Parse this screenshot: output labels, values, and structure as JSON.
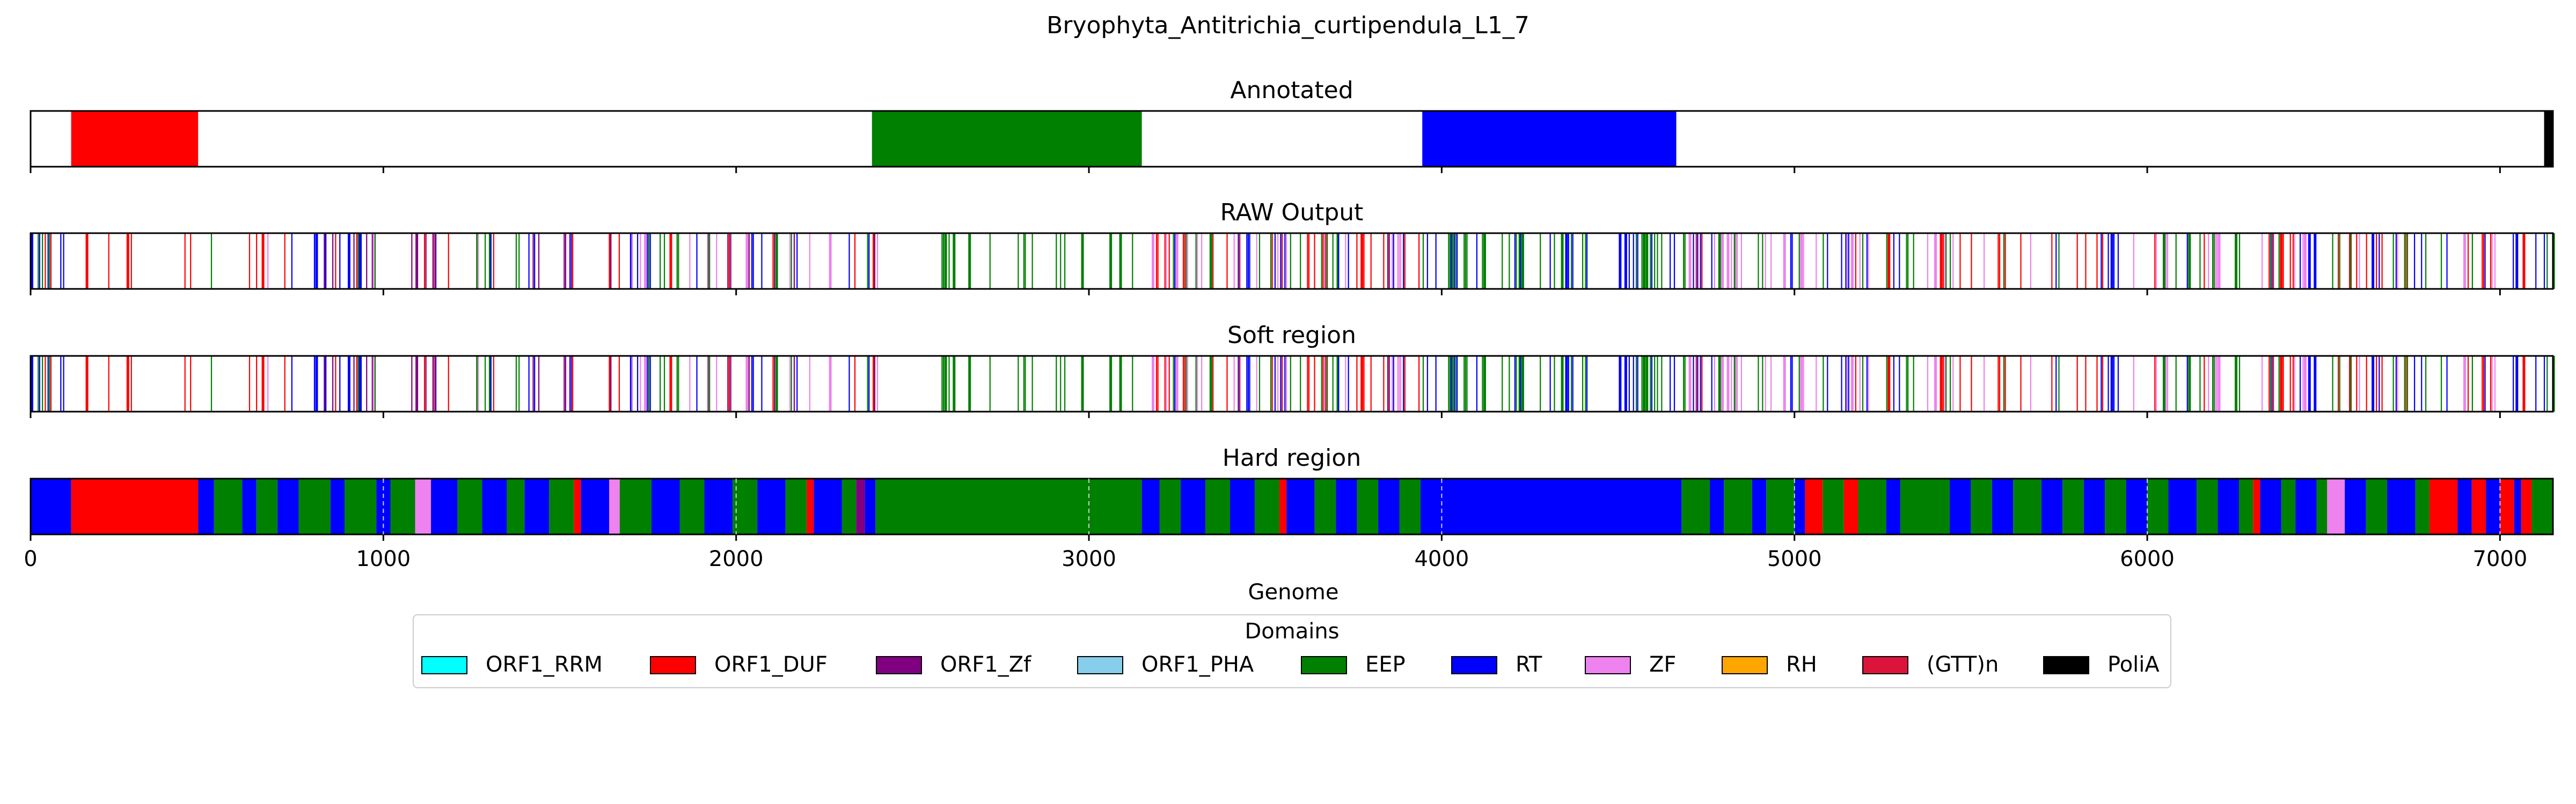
{
  "figure_title": "Bryophyta_Antitrichia_curtipendula_L1_7",
  "chart_data": {
    "type": "bar",
    "orientation": "horizontal-tracks",
    "xlabel": "Genome",
    "xlim": [
      0,
      7150
    ],
    "xticks": [
      0,
      1000,
      2000,
      3000,
      4000,
      5000,
      6000,
      7000
    ],
    "grid": false,
    "legend": {
      "title": "Domains",
      "placement": "bottom-center",
      "entries": [
        {
          "name": "ORF1_RRM",
          "color": "#00ffff"
        },
        {
          "name": "ORF1_DUF",
          "color": "#ff0000"
        },
        {
          "name": "ORF1_Zf",
          "color": "#800080"
        },
        {
          "name": "ORF1_PHA",
          "color": "#87ceeb"
        },
        {
          "name": "EEP",
          "color": "#008000"
        },
        {
          "name": "RT",
          "color": "#0000ff"
        },
        {
          "name": "ZF",
          "color": "#ee82ee"
        },
        {
          "name": "RH",
          "color": "#ffa500"
        },
        {
          "name": "(GTT)n",
          "color": "#dc143c"
        },
        {
          "name": "PoliA",
          "color": "#000000"
        }
      ]
    },
    "tracks": [
      {
        "title": "Annotated",
        "segments": [
          {
            "domain": "ORF1_DUF",
            "start": 115,
            "end": 475
          },
          {
            "domain": "EEP",
            "start": 2385,
            "end": 3150
          },
          {
            "domain": "RT",
            "start": 3945,
            "end": 4665
          },
          {
            "domain": "PoliA",
            "start": 7125,
            "end": 7150
          }
        ]
      },
      {
        "title": "RAW Output",
        "pattern_seed": 7,
        "sparse_gap": [
          2400,
          2550
        ],
        "zones": [
          {
            "start": 0,
            "end": 120,
            "domains": [
              "RT",
              "EEP",
              "ORF1_DUF"
            ],
            "density": 0.3
          },
          {
            "start": 120,
            "end": 475,
            "domains": [
              "ORF1_DUF"
            ],
            "density": 0.1
          },
          {
            "start": 475,
            "end": 2400,
            "domains": [
              "RT",
              "EEP",
              "ORF1_Zf",
              "ORF1_DUF",
              "ZF"
            ],
            "density": 0.24
          },
          {
            "start": 2550,
            "end": 3150,
            "domains": [
              "EEP"
            ],
            "density": 0.14
          },
          {
            "start": 3150,
            "end": 3950,
            "domains": [
              "RT",
              "EEP",
              "ORF1_DUF",
              "ZF"
            ],
            "density": 0.26
          },
          {
            "start": 3950,
            "end": 4680,
            "domains": [
              "RT",
              "EEP"
            ],
            "density": 0.25
          },
          {
            "start": 4680,
            "end": 7150,
            "domains": [
              "EEP",
              "RT",
              "ORF1_DUF",
              "ZF"
            ],
            "density": 0.22
          }
        ]
      },
      {
        "title": "Soft region",
        "pattern_seed": 7,
        "sparse_gap": [
          2400,
          2550
        ],
        "zones": [
          {
            "start": 0,
            "end": 120,
            "domains": [
              "RT",
              "EEP",
              "ORF1_DUF"
            ],
            "density": 0.3
          },
          {
            "start": 120,
            "end": 475,
            "domains": [
              "ORF1_DUF"
            ],
            "density": 0.1
          },
          {
            "start": 475,
            "end": 2400,
            "domains": [
              "RT",
              "EEP",
              "ORF1_Zf",
              "ORF1_DUF",
              "ZF"
            ],
            "density": 0.24
          },
          {
            "start": 2550,
            "end": 3150,
            "domains": [
              "EEP"
            ],
            "density": 0.14
          },
          {
            "start": 3150,
            "end": 3950,
            "domains": [
              "RT",
              "EEP",
              "ORF1_DUF",
              "ZF"
            ],
            "density": 0.26
          },
          {
            "start": 3950,
            "end": 4680,
            "domains": [
              "RT",
              "EEP"
            ],
            "density": 0.25
          },
          {
            "start": 4680,
            "end": 7150,
            "domains": [
              "EEP",
              "RT",
              "ORF1_DUF",
              "ZF"
            ],
            "density": 0.22
          }
        ]
      },
      {
        "title": "Hard region",
        "segments": [
          {
            "domain": "RT",
            "start": 0,
            "end": 115
          },
          {
            "domain": "ORF1_DUF",
            "start": 115,
            "end": 475
          },
          {
            "domain": "RT",
            "start": 475,
            "end": 520
          },
          {
            "domain": "EEP",
            "start": 520,
            "end": 600
          },
          {
            "domain": "RT",
            "start": 600,
            "end": 640
          },
          {
            "domain": "EEP",
            "start": 640,
            "end": 700
          },
          {
            "domain": "RT",
            "start": 700,
            "end": 760
          },
          {
            "domain": "EEP",
            "start": 760,
            "end": 850
          },
          {
            "domain": "RT",
            "start": 850,
            "end": 890
          },
          {
            "domain": "EEP",
            "start": 890,
            "end": 980
          },
          {
            "domain": "RT",
            "start": 980,
            "end": 1020
          },
          {
            "domain": "EEP",
            "start": 1020,
            "end": 1090
          },
          {
            "domain": "ZF",
            "start": 1090,
            "end": 1135
          },
          {
            "domain": "RT",
            "start": 1135,
            "end": 1210
          },
          {
            "domain": "EEP",
            "start": 1210,
            "end": 1280
          },
          {
            "domain": "RT",
            "start": 1280,
            "end": 1350
          },
          {
            "domain": "EEP",
            "start": 1350,
            "end": 1400
          },
          {
            "domain": "RT",
            "start": 1400,
            "end": 1470
          },
          {
            "domain": "EEP",
            "start": 1470,
            "end": 1540
          },
          {
            "domain": "ORF1_DUF",
            "start": 1540,
            "end": 1560
          },
          {
            "domain": "RT",
            "start": 1560,
            "end": 1640
          },
          {
            "domain": "ZF",
            "start": 1640,
            "end": 1670
          },
          {
            "domain": "EEP",
            "start": 1670,
            "end": 1760
          },
          {
            "domain": "RT",
            "start": 1760,
            "end": 1840
          },
          {
            "domain": "EEP",
            "start": 1840,
            "end": 1910
          },
          {
            "domain": "RT",
            "start": 1910,
            "end": 1990
          },
          {
            "domain": "EEP",
            "start": 1990,
            "end": 2060
          },
          {
            "domain": "RT",
            "start": 2060,
            "end": 2140
          },
          {
            "domain": "EEP",
            "start": 2140,
            "end": 2200
          },
          {
            "domain": "ORF1_DUF",
            "start": 2200,
            "end": 2220
          },
          {
            "domain": "RT",
            "start": 2220,
            "end": 2300
          },
          {
            "domain": "EEP",
            "start": 2300,
            "end": 2340
          },
          {
            "domain": "ORF1_Zf",
            "start": 2340,
            "end": 2365
          },
          {
            "domain": "RT",
            "start": 2365,
            "end": 2395
          },
          {
            "domain": "EEP",
            "start": 2395,
            "end": 3150
          },
          {
            "domain": "RT",
            "start": 3150,
            "end": 3200
          },
          {
            "domain": "EEP",
            "start": 3200,
            "end": 3260
          },
          {
            "domain": "RT",
            "start": 3260,
            "end": 3330
          },
          {
            "domain": "EEP",
            "start": 3330,
            "end": 3400
          },
          {
            "domain": "RT",
            "start": 3400,
            "end": 3470
          },
          {
            "domain": "EEP",
            "start": 3470,
            "end": 3540
          },
          {
            "domain": "ORF1_DUF",
            "start": 3540,
            "end": 3560
          },
          {
            "domain": "RT",
            "start": 3560,
            "end": 3640
          },
          {
            "domain": "EEP",
            "start": 3640,
            "end": 3700
          },
          {
            "domain": "RT",
            "start": 3700,
            "end": 3760
          },
          {
            "domain": "EEP",
            "start": 3760,
            "end": 3820
          },
          {
            "domain": "RT",
            "start": 3820,
            "end": 3880
          },
          {
            "domain": "EEP",
            "start": 3880,
            "end": 3940
          },
          {
            "domain": "RT",
            "start": 3940,
            "end": 4680
          },
          {
            "domain": "EEP",
            "start": 4680,
            "end": 4760
          },
          {
            "domain": "RT",
            "start": 4760,
            "end": 4800
          },
          {
            "domain": "EEP",
            "start": 4800,
            "end": 4880
          },
          {
            "domain": "RT",
            "start": 4880,
            "end": 4920
          },
          {
            "domain": "EEP",
            "start": 4920,
            "end": 5000
          },
          {
            "domain": "RT",
            "start": 5000,
            "end": 5030
          },
          {
            "domain": "ORF1_DUF",
            "start": 5030,
            "end": 5080
          },
          {
            "domain": "EEP",
            "start": 5080,
            "end": 5140
          },
          {
            "domain": "ORF1_DUF",
            "start": 5140,
            "end": 5180
          },
          {
            "domain": "EEP",
            "start": 5180,
            "end": 5260
          },
          {
            "domain": "RT",
            "start": 5260,
            "end": 5300
          },
          {
            "domain": "EEP",
            "start": 5300,
            "end": 5440
          },
          {
            "domain": "RT",
            "start": 5440,
            "end": 5500
          },
          {
            "domain": "EEP",
            "start": 5500,
            "end": 5560
          },
          {
            "domain": "RT",
            "start": 5560,
            "end": 5620
          },
          {
            "domain": "EEP",
            "start": 5620,
            "end": 5700
          },
          {
            "domain": "RT",
            "start": 5700,
            "end": 5760
          },
          {
            "domain": "EEP",
            "start": 5760,
            "end": 5820
          },
          {
            "domain": "RT",
            "start": 5820,
            "end": 5880
          },
          {
            "domain": "EEP",
            "start": 5880,
            "end": 5940
          },
          {
            "domain": "RT",
            "start": 5940,
            "end": 6000
          },
          {
            "domain": "EEP",
            "start": 6000,
            "end": 6060
          },
          {
            "domain": "RT",
            "start": 6060,
            "end": 6140
          },
          {
            "domain": "EEP",
            "start": 6140,
            "end": 6200
          },
          {
            "domain": "RT",
            "start": 6200,
            "end": 6260
          },
          {
            "domain": "EEP",
            "start": 6260,
            "end": 6300
          },
          {
            "domain": "ORF1_DUF",
            "start": 6300,
            "end": 6320
          },
          {
            "domain": "RT",
            "start": 6320,
            "end": 6380
          },
          {
            "domain": "EEP",
            "start": 6380,
            "end": 6420
          },
          {
            "domain": "RT",
            "start": 6420,
            "end": 6480
          },
          {
            "domain": "EEP",
            "start": 6480,
            "end": 6510
          },
          {
            "domain": "ZF",
            "start": 6510,
            "end": 6560
          },
          {
            "domain": "RT",
            "start": 6560,
            "end": 6620
          },
          {
            "domain": "EEP",
            "start": 6620,
            "end": 6680
          },
          {
            "domain": "RT",
            "start": 6680,
            "end": 6760
          },
          {
            "domain": "EEP",
            "start": 6760,
            "end": 6800
          },
          {
            "domain": "ORF1_DUF",
            "start": 6800,
            "end": 6880
          },
          {
            "domain": "RT",
            "start": 6880,
            "end": 6920
          },
          {
            "domain": "ORF1_DUF",
            "start": 6920,
            "end": 6960
          },
          {
            "domain": "RT",
            "start": 6960,
            "end": 7000
          },
          {
            "domain": "ORF1_DUF",
            "start": 7000,
            "end": 7040
          },
          {
            "domain": "RT",
            "start": 7040,
            "end": 7060
          },
          {
            "domain": "ORF1_DUF",
            "start": 7060,
            "end": 7090
          },
          {
            "domain": "EEP",
            "start": 7090,
            "end": 7150
          }
        ]
      }
    ]
  }
}
